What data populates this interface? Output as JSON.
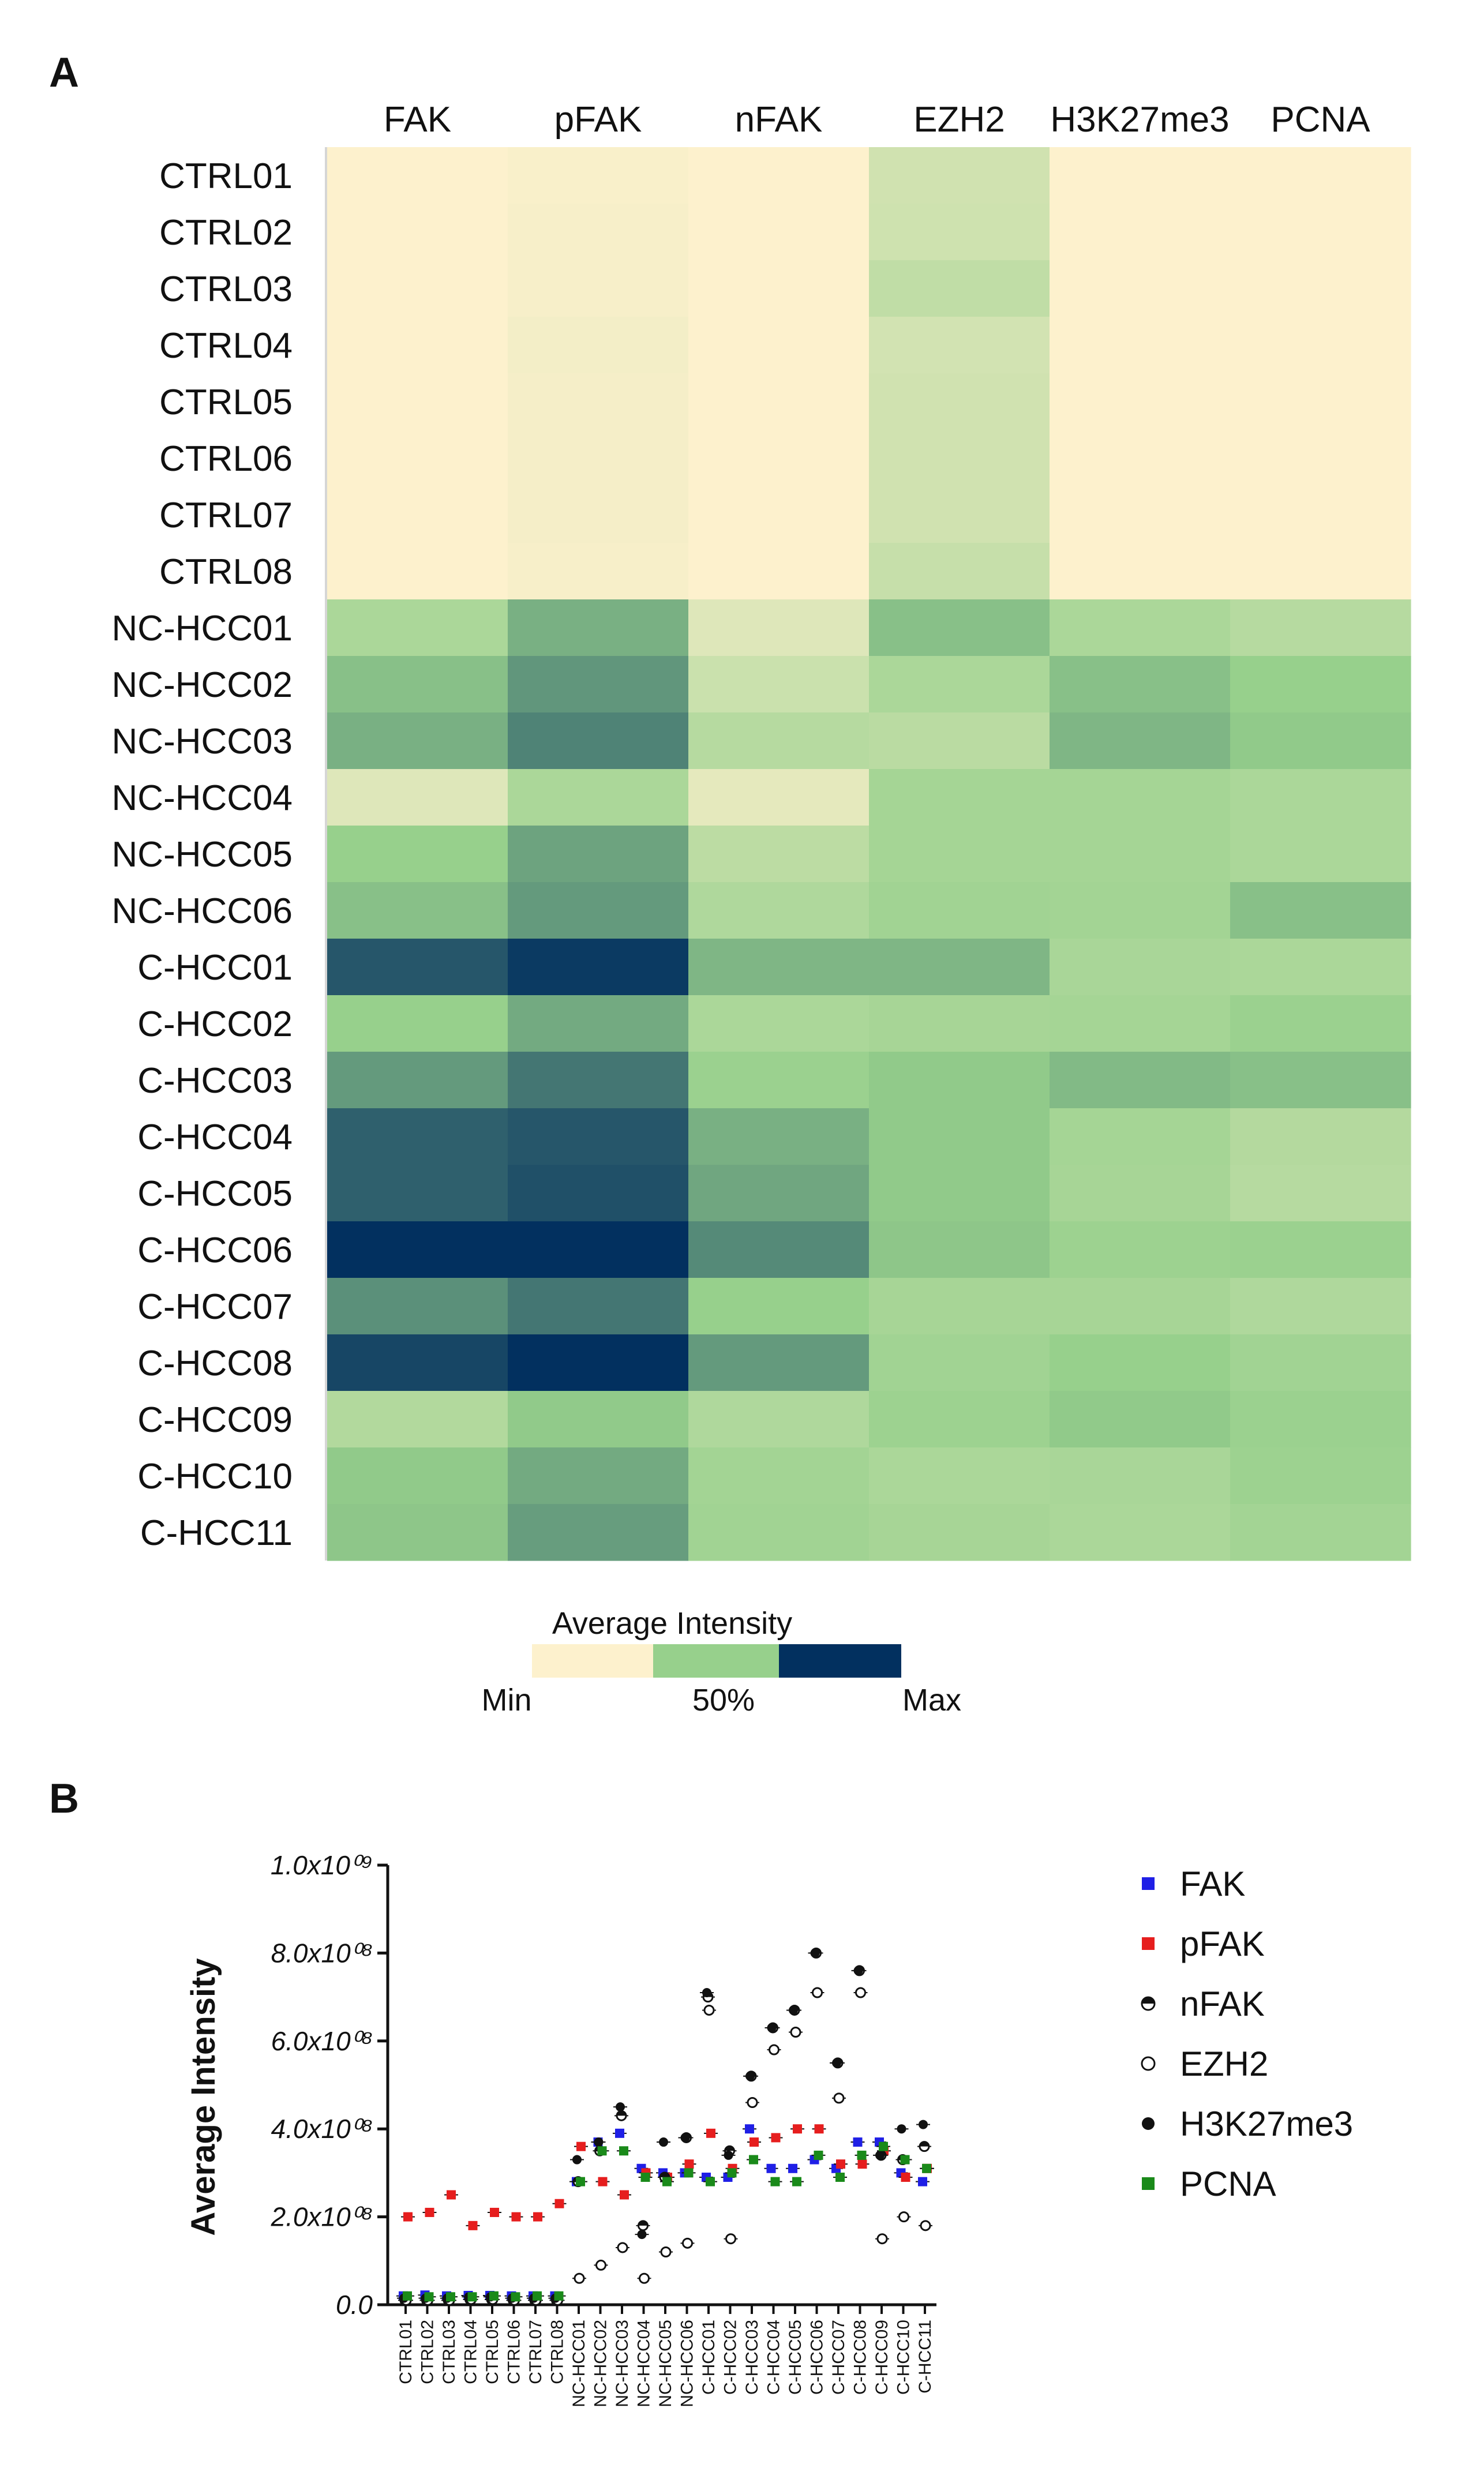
{
  "panels": {
    "a": "A",
    "b": "B"
  },
  "heatmap": {
    "columns": [
      "FAK",
      "pFAK",
      "nFAK",
      "EZH2",
      "H3K27me3",
      "PCNA"
    ],
    "rows": [
      "CTRL01",
      "CTRL02",
      "CTRL03",
      "CTRL04",
      "CTRL05",
      "CTRL06",
      "CTRL07",
      "CTRL08",
      "NC-HCC01",
      "NC-HCC02",
      "NC-HCC03",
      "NC-HCC04",
      "NC-HCC05",
      "NC-HCC06",
      "C-HCC01",
      "C-HCC02",
      "C-HCC03",
      "C-HCC04",
      "C-HCC05",
      "C-HCC06",
      "C-HCC07",
      "C-HCC08",
      "C-HCC09",
      "C-HCC10",
      "C-HCC11"
    ],
    "values": [
      [
        0.0,
        0.02,
        0.0,
        0.22,
        0.0,
        0.0
      ],
      [
        0.0,
        0.03,
        0.0,
        0.23,
        0.0,
        0.0
      ],
      [
        0.0,
        0.03,
        0.0,
        0.3,
        0.0,
        0.0
      ],
      [
        0.0,
        0.05,
        0.0,
        0.21,
        0.0,
        0.0
      ],
      [
        0.0,
        0.04,
        0.0,
        0.22,
        0.0,
        0.0
      ],
      [
        0.0,
        0.04,
        0.0,
        0.22,
        0.0,
        0.0
      ],
      [
        0.0,
        0.04,
        0.0,
        0.22,
        0.0,
        0.0
      ],
      [
        0.0,
        0.03,
        0.0,
        0.27,
        0.0,
        0.0
      ],
      [
        0.4,
        0.6,
        0.15,
        0.55,
        0.4,
        0.35
      ],
      [
        0.55,
        0.68,
        0.25,
        0.4,
        0.55,
        0.5
      ],
      [
        0.6,
        0.74,
        0.35,
        0.33,
        0.58,
        0.52
      ],
      [
        0.15,
        0.4,
        0.12,
        0.43,
        0.43,
        0.4
      ],
      [
        0.5,
        0.64,
        0.32,
        0.43,
        0.43,
        0.4
      ],
      [
        0.55,
        0.67,
        0.38,
        0.45,
        0.44,
        0.55
      ],
      [
        0.88,
        0.97,
        0.58,
        0.58,
        0.41,
        0.4
      ],
      [
        0.5,
        0.62,
        0.4,
        0.42,
        0.43,
        0.48
      ],
      [
        0.67,
        0.78,
        0.48,
        0.52,
        0.57,
        0.55
      ],
      [
        0.85,
        0.88,
        0.6,
        0.52,
        0.43,
        0.36
      ],
      [
        0.85,
        0.9,
        0.63,
        0.52,
        0.42,
        0.35
      ],
      [
        1.0,
        1.0,
        0.72,
        0.53,
        0.47,
        0.48
      ],
      [
        0.7,
        0.78,
        0.5,
        0.42,
        0.42,
        0.38
      ],
      [
        0.93,
        1.0,
        0.67,
        0.45,
        0.5,
        0.45
      ],
      [
        0.37,
        0.52,
        0.38,
        0.47,
        0.52,
        0.48
      ],
      [
        0.52,
        0.62,
        0.44,
        0.4,
        0.41,
        0.47
      ],
      [
        0.53,
        0.66,
        0.45,
        0.42,
        0.4,
        0.44
      ]
    ],
    "colors": {
      "min": "#fdf1cd",
      "mid": "#97d08c",
      "max": "#02305f"
    },
    "legend": {
      "title": "Average Intensity",
      "min_label": "Min",
      "mid_label": "50%",
      "max_label": "Max"
    }
  },
  "chart_data": {
    "type": "scatter",
    "ylabel": "Average Intensity",
    "ylim": [
      0,
      1000000000
    ],
    "ytick_values": [
      0,
      200000000,
      400000000,
      600000000,
      800000000,
      1000000000
    ],
    "ytick_labels": [
      "0.0",
      "2.0x10⁰⁸",
      "4.0x10⁰⁸",
      "6.0x10⁰⁸",
      "8.0x10⁰⁸",
      "1.0x10⁰⁹"
    ],
    "categories": [
      "CTRL01",
      "CTRL02",
      "CTRL03",
      "CTRL04",
      "CTRL05",
      "CTRL06",
      "CTRL07",
      "CTRL08",
      "NC-HCC01",
      "NC-HCC02",
      "NC-HCC03",
      "NC-HCC04",
      "NC-HCC05",
      "NC-HCC06",
      "C-HCC01",
      "C-HCC02",
      "C-HCC03",
      "C-HCC04",
      "C-HCC05",
      "C-HCC06",
      "C-HCC07",
      "C-HCC08",
      "C-HCC09",
      "C-HCC10",
      "C-HCC11"
    ],
    "series": [
      {
        "name": "FAK",
        "marker": "square",
        "color": "#1f1fe6",
        "values": [
          20000000,
          22000000,
          20000000,
          21000000,
          21000000,
          20000000,
          20000000,
          20000000,
          280000000,
          370000000,
          390000000,
          310000000,
          300000000,
          300000000,
          290000000,
          290000000,
          400000000,
          310000000,
          310000000,
          330000000,
          310000000,
          370000000,
          370000000,
          300000000,
          280000000
        ]
      },
      {
        "name": "pFAK",
        "marker": "square",
        "color": "#e61e1e",
        "values": [
          200000000,
          210000000,
          250000000,
          180000000,
          210000000,
          200000000,
          200000000,
          230000000,
          360000000,
          280000000,
          250000000,
          300000000,
          290000000,
          320000000,
          390000000,
          310000000,
          370000000,
          380000000,
          400000000,
          400000000,
          320000000,
          320000000,
          350000000,
          290000000,
          310000000
        ]
      },
      {
        "name": "nFAK",
        "marker": "half-filled-circle",
        "color": "#111111",
        "values": [
          10000000,
          10000000,
          10000000,
          12000000,
          12000000,
          10000000,
          10000000,
          10000000,
          280000000,
          350000000,
          430000000,
          180000000,
          290000000,
          380000000,
          700000000,
          350000000,
          520000000,
          630000000,
          670000000,
          800000000,
          550000000,
          760000000,
          340000000,
          330000000,
          360000000
        ]
      },
      {
        "name": "EZH2",
        "marker": "open-circle",
        "color": "#111111",
        "values": [
          10000000,
          10000000,
          10000000,
          12000000,
          12000000,
          10000000,
          10000000,
          10000000,
          60000000,
          90000000,
          130000000,
          60000000,
          120000000,
          140000000,
          670000000,
          150000000,
          460000000,
          580000000,
          620000000,
          710000000,
          470000000,
          710000000,
          150000000,
          200000000,
          180000000
        ]
      },
      {
        "name": "H3K27me3",
        "marker": "filled-circle",
        "color": "#111111",
        "values": [
          15000000,
          15000000,
          15000000,
          18000000,
          18000000,
          15000000,
          15000000,
          15000000,
          330000000,
          370000000,
          450000000,
          160000000,
          370000000,
          380000000,
          710000000,
          340000000,
          520000000,
          630000000,
          670000000,
          800000000,
          550000000,
          760000000,
          340000000,
          400000000,
          410000000
        ]
      },
      {
        "name": "PCNA",
        "marker": "square",
        "color": "#1a8a1a",
        "values": [
          20000000,
          18000000,
          18000000,
          18000000,
          20000000,
          18000000,
          20000000,
          20000000,
          280000000,
          350000000,
          350000000,
          290000000,
          280000000,
          300000000,
          280000000,
          300000000,
          330000000,
          280000000,
          280000000,
          340000000,
          290000000,
          340000000,
          360000000,
          330000000,
          310000000
        ]
      }
    ]
  }
}
